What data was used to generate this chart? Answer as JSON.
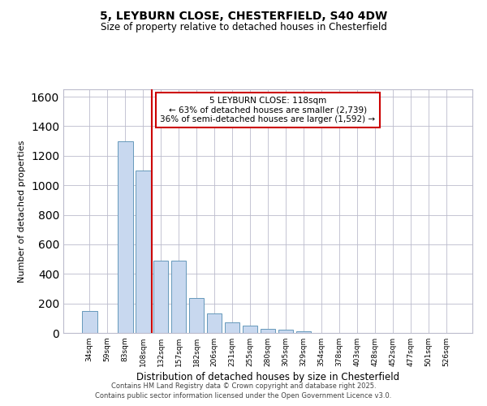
{
  "title1": "5, LEYBURN CLOSE, CHESTERFIELD, S40 4DW",
  "title2": "Size of property relative to detached houses in Chesterfield",
  "xlabel": "Distribution of detached houses by size in Chesterfield",
  "ylabel": "Number of detached properties",
  "categories": [
    "34sqm",
    "59sqm",
    "83sqm",
    "108sqm",
    "132sqm",
    "157sqm",
    "182sqm",
    "206sqm",
    "231sqm",
    "255sqm",
    "280sqm",
    "305sqm",
    "329sqm",
    "354sqm",
    "378sqm",
    "403sqm",
    "428sqm",
    "452sqm",
    "477sqm",
    "501sqm",
    "526sqm"
  ],
  "values": [
    148,
    0,
    1300,
    1100,
    490,
    490,
    234,
    130,
    70,
    48,
    30,
    20,
    10,
    0,
    0,
    0,
    0,
    0,
    0,
    0,
    0
  ],
  "bar_color": "#c8d8ef",
  "bar_edge_color": "#6699bb",
  "bar_width": 0.85,
  "vline_x": 3.5,
  "vline_color": "#cc0000",
  "annotation_text": "5 LEYBURN CLOSE: 118sqm\n← 63% of detached houses are smaller (2,739)\n36% of semi-detached houses are larger (1,592) →",
  "annotation_box_color": "#ffffff",
  "annotation_box_edge": "#cc0000",
  "ylim": [
    0,
    1650
  ],
  "yticks": [
    0,
    200,
    400,
    600,
    800,
    1000,
    1200,
    1400,
    1600
  ],
  "grid_color": "#bbbbcc",
  "bg_color": "#ffffff",
  "footer1": "Contains HM Land Registry data © Crown copyright and database right 2025.",
  "footer2": "Contains public sector information licensed under the Open Government Licence v3.0."
}
